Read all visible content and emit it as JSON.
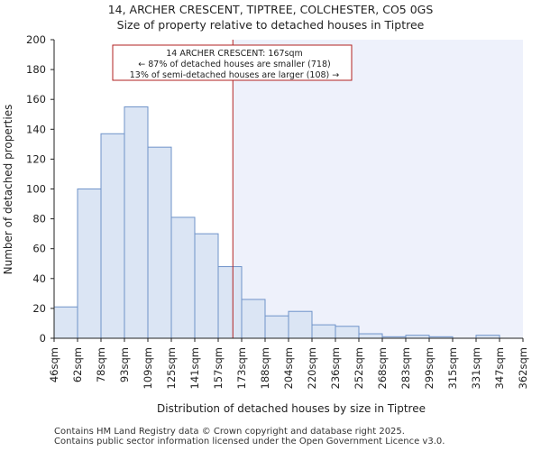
{
  "chart_data": {
    "type": "bar",
    "title": "14, ARCHER CRESCENT, TIPTREE, COLCHESTER, CO5 0GS",
    "subtitle": "Size of property relative to detached houses in Tiptree",
    "xlabel": "Distribution of detached houses by size in Tiptree",
    "ylabel": "Number of detached properties",
    "ylim": [
      0,
      200
    ],
    "yticks": [
      0,
      20,
      40,
      60,
      80,
      100,
      120,
      140,
      160,
      180,
      200
    ],
    "bin_edges": [
      46,
      62,
      78,
      93,
      109,
      125,
      141,
      157,
      173,
      188,
      204,
      220,
      236,
      252,
      268,
      283,
      299,
      315,
      331,
      347,
      362
    ],
    "tick_labels": [
      "46sqm",
      "62sqm",
      "78sqm",
      "93sqm",
      "109sqm",
      "125sqm",
      "141sqm",
      "157sqm",
      "173sqm",
      "188sqm",
      "204sqm",
      "220sqm",
      "236sqm",
      "252sqm",
      "268sqm",
      "283sqm",
      "299sqm",
      "315sqm",
      "331sqm",
      "347sqm",
      "362sqm"
    ],
    "values": [
      21,
      100,
      137,
      155,
      128,
      81,
      70,
      48,
      26,
      15,
      18,
      9,
      8,
      3,
      1,
      2,
      1,
      0,
      2,
      0
    ],
    "marker": {
      "value": 167,
      "color": "#b22222",
      "label_lines": [
        "14 ARCHER CRESCENT: 167sqm",
        "← 87% of detached houses are smaller (718)",
        "13% of semi-detached houses are larger (108) →"
      ]
    },
    "colors": {
      "bar_fill": "#dbe5f4",
      "bar_edge": "#6f93c9",
      "highlight_bg": "#eef1fb",
      "axis": "#222222"
    }
  },
  "footer": {
    "line1": "Contains HM Land Registry data © Crown copyright and database right 2025.",
    "line2": "Contains public sector information licensed under the Open Government Licence v3.0."
  }
}
